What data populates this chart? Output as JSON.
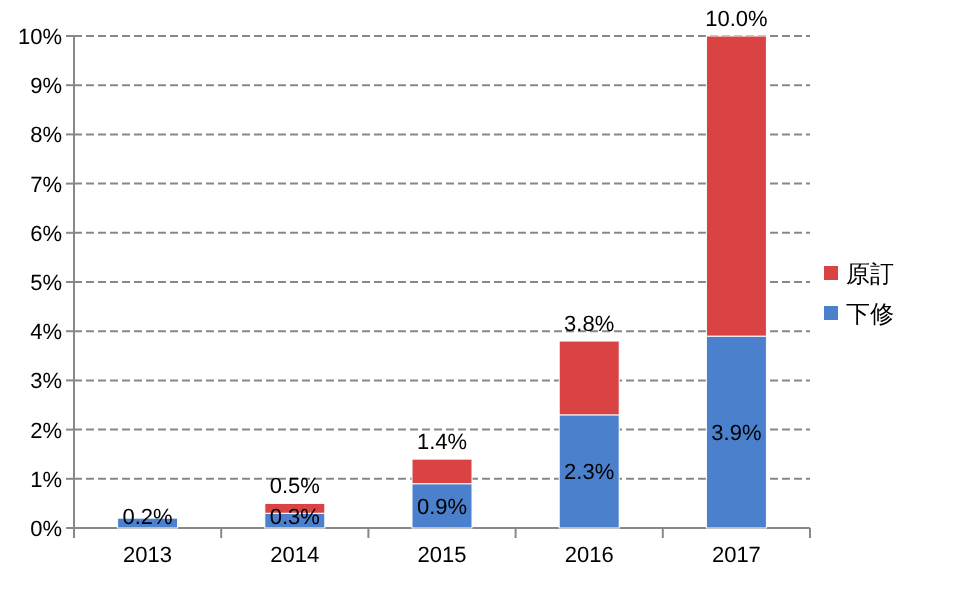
{
  "chart_data": {
    "type": "bar",
    "stacked": true,
    "categories": [
      "2013",
      "2014",
      "2015",
      "2016",
      "2017"
    ],
    "series": [
      {
        "name": "下修",
        "color": "#4a80cc",
        "values": [
          0.2,
          0.3,
          0.9,
          2.3,
          3.9
        ],
        "value_labels": [
          "0.2%",
          "0.3%",
          "0.9%",
          "2.3%",
          "3.9%"
        ]
      },
      {
        "name": "原訂",
        "color": "#d94343",
        "values": [
          null,
          0.2,
          0.5,
          1.5,
          6.1
        ]
      }
    ],
    "totals": [
      null,
      "0.5%",
      "1.4%",
      "3.8%",
      "10.0%"
    ],
    "ylim": [
      0,
      10
    ],
    "yticks": [
      {
        "value": 0,
        "label": "0%"
      },
      {
        "value": 1,
        "label": "1%"
      },
      {
        "value": 2,
        "label": "2%"
      },
      {
        "value": 3,
        "label": "3%"
      },
      {
        "value": 4,
        "label": "4%"
      },
      {
        "value": 5,
        "label": "5%"
      },
      {
        "value": 6,
        "label": "6%"
      },
      {
        "value": 7,
        "label": "7%"
      },
      {
        "value": 8,
        "label": "8%"
      },
      {
        "value": 9,
        "label": "9%"
      },
      {
        "value": 10,
        "label": "10%"
      }
    ],
    "grid": "y",
    "legend": "right"
  }
}
